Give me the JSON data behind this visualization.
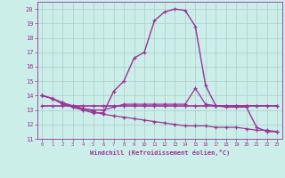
{
  "background_color": "#cceee8",
  "grid_color": "#aacccc",
  "line_color": "#993399",
  "xlim_min": -0.5,
  "xlim_max": 23.5,
  "ylim_min": 11,
  "ylim_max": 20.5,
  "yticks": [
    11,
    12,
    13,
    14,
    15,
    16,
    17,
    18,
    19,
    20
  ],
  "xticks": [
    0,
    1,
    2,
    3,
    4,
    5,
    6,
    7,
    8,
    9,
    10,
    11,
    12,
    13,
    14,
    15,
    16,
    17,
    18,
    19,
    20,
    21,
    22,
    23
  ],
  "xlabel": "Windchill (Refroidissement éolien,°C)",
  "curve_peak": [
    14.0,
    13.8,
    13.5,
    13.2,
    13.0,
    12.8,
    12.8,
    14.3,
    15.0,
    16.6,
    17.0,
    19.2,
    19.8,
    20.0,
    19.9,
    18.8,
    14.7,
    13.3,
    13.2,
    13.2,
    13.2,
    11.8,
    11.5,
    11.5
  ],
  "curve_upper": [
    14.0,
    13.8,
    13.4,
    13.2,
    13.1,
    13.0,
    13.0,
    13.2,
    13.4,
    13.4,
    13.4,
    13.4,
    13.4,
    13.4,
    13.4,
    14.5,
    13.4,
    13.3,
    13.3,
    13.3,
    13.3,
    13.3,
    13.3,
    13.3
  ],
  "curve_flat": [
    13.3,
    13.3,
    13.3,
    13.3,
    13.3,
    13.3,
    13.3,
    13.3,
    13.3,
    13.3,
    13.3,
    13.3,
    13.3,
    13.3,
    13.3,
    13.3,
    13.3,
    13.3,
    13.3,
    13.3,
    13.3,
    13.3,
    13.3,
    13.3
  ],
  "curve_decline": [
    14.0,
    13.8,
    13.5,
    13.3,
    13.1,
    12.9,
    12.7,
    12.6,
    12.5,
    12.4,
    12.3,
    12.2,
    12.1,
    12.0,
    11.9,
    11.9,
    11.9,
    11.8,
    11.8,
    11.8,
    11.7,
    11.6,
    11.6,
    11.5
  ]
}
